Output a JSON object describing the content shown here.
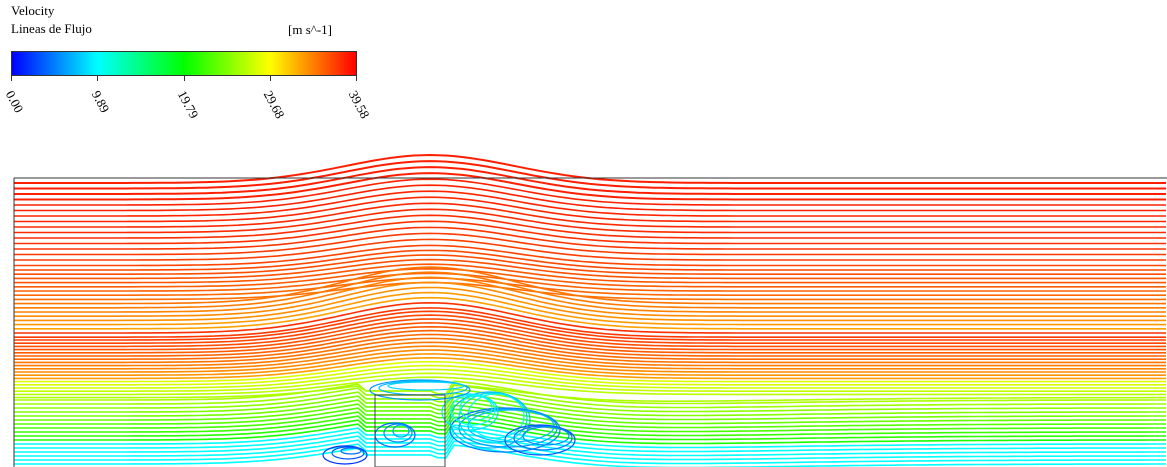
{
  "legend": {
    "title": "Velocity",
    "subtitle": "Lineas de Flujo",
    "units": "[m s^-1]",
    "ticks": [
      "0.00",
      "9.89",
      "19.79",
      "29.68",
      "39.58"
    ]
  },
  "chart_data": {
    "type": "streamline",
    "variable": "Velocity",
    "title": "Lineas de Flujo",
    "units": "[m s^-1]",
    "colorbar": {
      "min": 0.0,
      "max": 39.58,
      "ticks": [
        0.0,
        9.89,
        19.79,
        29.68,
        39.58
      ],
      "tick_labels": [
        "0.00",
        "9.89",
        "19.79",
        "29.68",
        "39.58"
      ],
      "colormap": [
        "#0000ff",
        "#00ffff",
        "#00ff00",
        "#ffff00",
        "#ff0000"
      ]
    },
    "obstacle": "rectangular bluff body",
    "grid": false
  }
}
